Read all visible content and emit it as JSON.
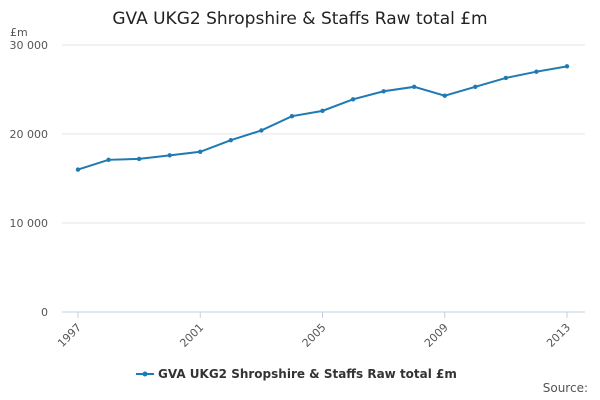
{
  "chart_data": {
    "type": "line",
    "title": "GVA UKG2 Shropshire & Staffs Raw total £m",
    "y_label": "£m",
    "source": "Source:",
    "x": [
      1997,
      1998,
      1999,
      2000,
      2001,
      2002,
      2003,
      2004,
      2005,
      2006,
      2007,
      2008,
      2009,
      2010,
      2011,
      2012,
      2013
    ],
    "series": [
      {
        "name": "GVA UKG2 Shropshire & Staffs Raw total £m",
        "color": "#1f7ab4",
        "values": [
          16000,
          17100,
          17200,
          17600,
          18000,
          19300,
          20400,
          22000,
          22600,
          23900,
          24800,
          25300,
          24300,
          25300,
          26300,
          27000,
          27600
        ]
      }
    ],
    "xlim": [
      1997,
      2013
    ],
    "xticks": [
      1997,
      2001,
      2005,
      2009,
      2013
    ],
    "ylim": [
      0,
      30000
    ],
    "yticks": [
      0,
      {
        "value": 10000,
        "label": "10 000"
      },
      {
        "value": 20000,
        "label": "20 000"
      },
      {
        "value": 30000,
        "label": "30 000"
      }
    ],
    "grid": true,
    "legend": "bottom"
  }
}
